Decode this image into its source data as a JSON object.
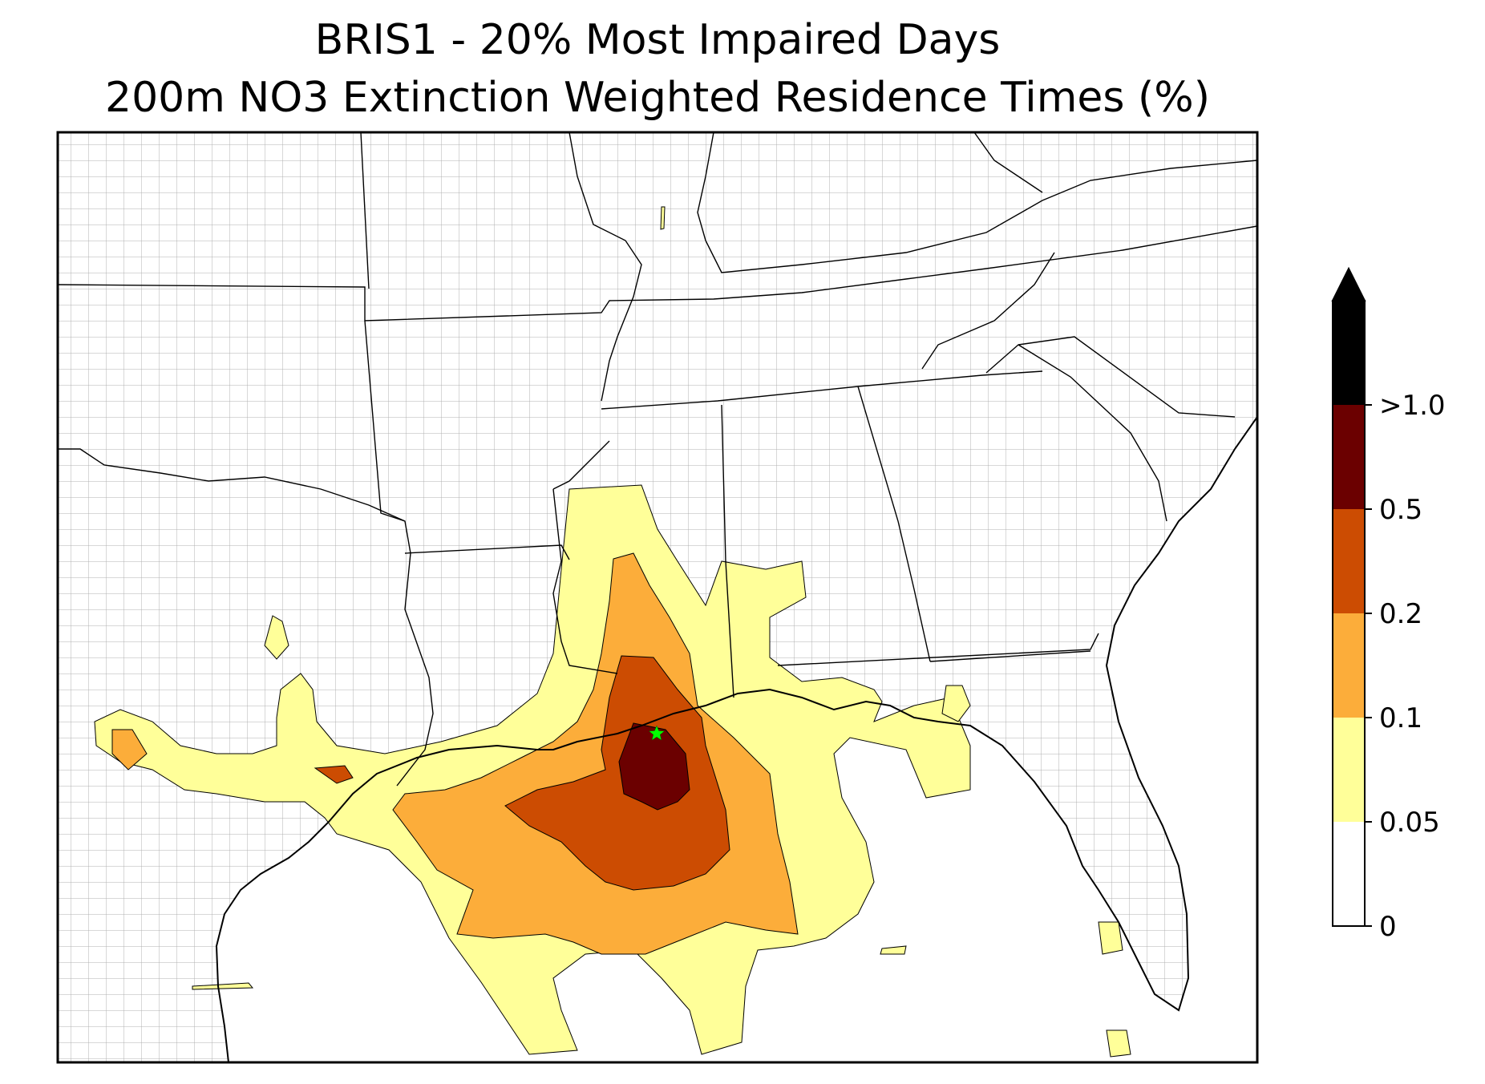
{
  "title": {
    "line1": "BRIS1 - 20% Most Impaired Days",
    "line2": "200m NO3 Extinction Weighted Residence Times (%)"
  },
  "map": {
    "region": "Southeastern United States and Gulf of Mexico",
    "site_marker": {
      "shape": "star",
      "color": "#00ff00"
    }
  },
  "colorbar": {
    "extend": "max",
    "levels": [
      {
        "label": "0",
        "color": "#ffffff"
      },
      {
        "label": "0.05",
        "color": "#ffff99"
      },
      {
        "label": "0.1",
        "color": "#fcad3a"
      },
      {
        "label": "0.2",
        "color": "#cc4c02"
      },
      {
        "label": "0.5",
        "color": "#6b0000"
      },
      {
        "label": ">1.0",
        "color": "#000000"
      }
    ]
  }
}
